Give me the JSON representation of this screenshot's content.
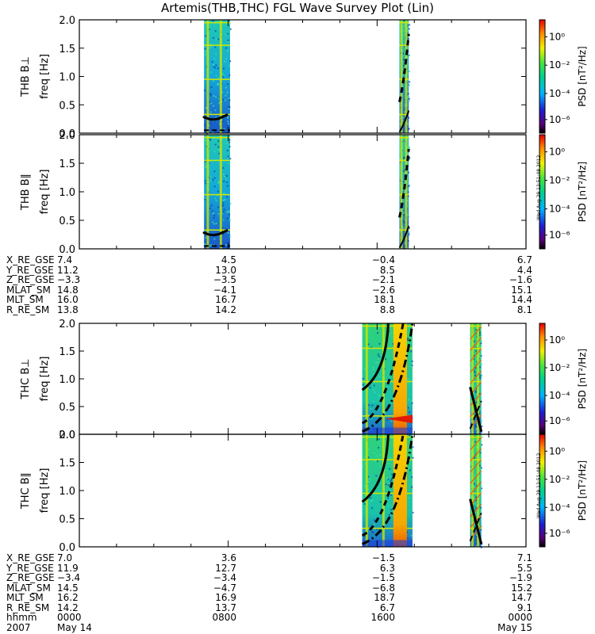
{
  "title": "Artemis(THB,THC) FGL Wave Survey Plot (Lin)",
  "colorbar": {
    "label": "PSD [nT²/Hz]",
    "ticks": [
      "10⁰",
      "10⁻²",
      "10⁻⁴",
      "10⁻⁶"
    ]
  },
  "stamp": "Wed Aug 29 12:51:48 2012",
  "chart_data": [
    {
      "type": "heatmap",
      "panel": "THB B⊥",
      "ylabel": "THB B⊥",
      "ylabel2": "freq [Hz]",
      "ylim": [
        0,
        2.0
      ],
      "yticks": [
        "2.0",
        "1.5",
        "1.0",
        "0.5",
        "0.0"
      ],
      "data_intervals_hours": [
        [
          6.7,
          8.1
        ],
        [
          17.2,
          17.7
        ]
      ]
    },
    {
      "type": "heatmap",
      "panel": "THB B∥",
      "ylabel": "THB B∥",
      "ylabel2": "freq [Hz]",
      "ylim": [
        0,
        2.0
      ],
      "yticks": [
        "2.0",
        "1.5",
        "1.0",
        "0.5",
        "0.0"
      ],
      "data_intervals_hours": [
        [
          6.7,
          8.1
        ],
        [
          17.2,
          17.7
        ]
      ]
    },
    {
      "type": "heatmap",
      "panel": "THC B⊥",
      "ylabel": "THC B⊥",
      "ylabel2": "freq [Hz]",
      "ylim": [
        0,
        2.0
      ],
      "yticks": [
        "2.0",
        "1.5",
        "1.0",
        "0.5",
        "0.0"
      ],
      "data_intervals_hours": [
        [
          15.2,
          17.9
        ],
        [
          21.0,
          21.6
        ]
      ]
    },
    {
      "type": "heatmap",
      "panel": "THC B∥",
      "ylabel": "THC B∥",
      "ylabel2": "freq [Hz]",
      "ylim": [
        0,
        2.0
      ],
      "yticks": [
        "2.0",
        "1.5",
        "1.0",
        "0.5",
        "0.0"
      ],
      "data_intervals_hours": [
        [
          15.2,
          17.9
        ],
        [
          21.0,
          21.6
        ]
      ]
    }
  ],
  "orbit_thb": {
    "labels": [
      "X_RE_GSE",
      "Y_RE_GSE",
      "Z_RE_GSE",
      "MLAT_SM",
      "MLT_SM",
      "R_RE_SM"
    ],
    "columns": [
      [
        "7.4",
        "11.2",
        "−3.3",
        "14.8",
        "16.0",
        "13.8"
      ],
      [
        "4.5",
        "13.0",
        "−3.5",
        "−4.1",
        "16.7",
        "14.2"
      ],
      [
        "−0.4",
        "8.5",
        "−2.1",
        "−2.6",
        "18.1",
        "8.8"
      ],
      [
        "6.7",
        "4.4",
        "−1.6",
        "15.1",
        "14.4",
        "8.1"
      ]
    ]
  },
  "orbit_thc": {
    "labels": [
      "X_RE_GSE",
      "Y_RE_GSE",
      "Z_RE_GSE",
      "MLAT_SM",
      "MLT_SM",
      "R_RE_SM",
      "hhmm",
      "2007"
    ],
    "columns": [
      [
        "7.0",
        "11.9",
        "−3.4",
        "14.5",
        "16.2",
        "14.2",
        "0000",
        "May 14"
      ],
      [
        "3.6",
        "12.7",
        "−3.4",
        "−4.7",
        "16.9",
        "13.7",
        "0800",
        ""
      ],
      [
        "−1.5",
        "6.3",
        "−1.5",
        "−6.8",
        "18.7",
        "6.7",
        "1600",
        ""
      ],
      [
        "7.1",
        "5.5",
        "−1.9",
        "15.2",
        "14.7",
        "9.1",
        "0000",
        "May 15"
      ]
    ]
  }
}
